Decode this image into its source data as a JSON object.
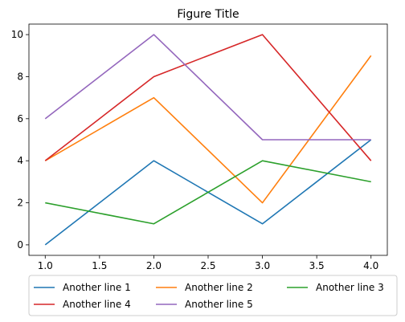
{
  "chart_data": {
    "type": "line",
    "title": "Figure Title",
    "xlabel": "",
    "ylabel": "",
    "x": [
      1.0,
      2.0,
      3.0,
      4.0
    ],
    "xlim": [
      0.85,
      4.15
    ],
    "ylim": [
      -0.5,
      10.5
    ],
    "xticks": [
      1.0,
      1.5,
      2.0,
      2.5,
      3.0,
      3.5,
      4.0
    ],
    "xtick_labels": [
      "1.0",
      "1.5",
      "2.0",
      "2.5",
      "3.0",
      "3.5",
      "4.0"
    ],
    "yticks": [
      0,
      2,
      4,
      6,
      8,
      10
    ],
    "ytick_labels": [
      "0",
      "2",
      "4",
      "6",
      "8",
      "10"
    ],
    "grid": false,
    "legend_placement": "below plot, 3 columns",
    "series": [
      {
        "name": "Another line 1",
        "color": "#1f77b4",
        "values": [
          0,
          4,
          1,
          5
        ]
      },
      {
        "name": "Another line 2",
        "color": "#ff7f0e",
        "values": [
          4,
          7,
          2,
          9
        ]
      },
      {
        "name": "Another line 3",
        "color": "#2ca02c",
        "values": [
          2,
          1,
          4,
          3
        ]
      },
      {
        "name": "Another line 4",
        "color": "#d62728",
        "values": [
          4,
          8,
          10,
          4
        ]
      },
      {
        "name": "Another line 5",
        "color": "#9467bd",
        "values": [
          6,
          10,
          5,
          5
        ]
      }
    ]
  }
}
